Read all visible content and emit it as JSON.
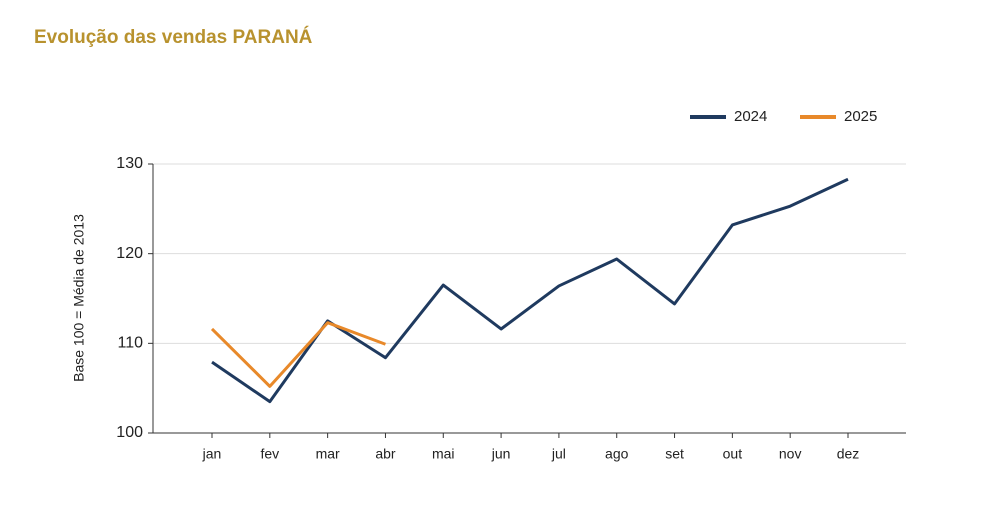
{
  "chart_data": {
    "type": "line",
    "title": "Evolução das vendas PARANÁ",
    "ylabel": "Base 100 = Média de 2013",
    "categories": [
      "jan",
      "fev",
      "mar",
      "abr",
      "mai",
      "jun",
      "jul",
      "ago",
      "set",
      "out",
      "nov",
      "dez"
    ],
    "series": [
      {
        "name": "2024",
        "color": "#1f3a5f",
        "values": [
          107.9,
          103.5,
          112.5,
          108.4,
          116.5,
          111.6,
          116.4,
          119.4,
          114.4,
          123.2,
          125.3,
          128.3
        ]
      },
      {
        "name": "2025",
        "color": "#e8892a",
        "values": [
          111.6,
          105.2,
          112.3,
          109.9,
          null,
          null,
          null,
          null,
          null,
          null,
          null,
          null
        ]
      }
    ],
    "ylim": [
      100,
      130
    ],
    "yticks": [
      100,
      110,
      120,
      130
    ],
    "grid": true,
    "legend": "top-right"
  }
}
